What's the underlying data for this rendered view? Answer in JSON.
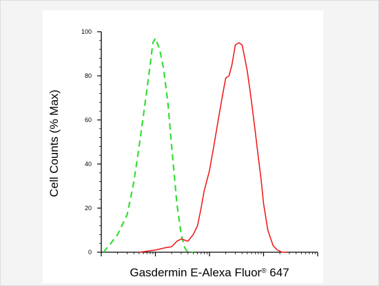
{
  "chart_data": {
    "type": "line",
    "xlabel": "Gasdermin E-Alexa Fluor",
    "xlabel_superscript": "®",
    "xlabel_suffix": " 647",
    "ylabel": "Cell Counts (% Max)",
    "x_scale": "log",
    "xlim": [
      1,
      10000
    ],
    "ylim": [
      0,
      100
    ],
    "yticks": [
      0,
      20,
      40,
      60,
      80,
      100
    ],
    "grid": false,
    "legend": "none",
    "series": [
      {
        "style": "dashed",
        "color": "#33dd33",
        "x": [
          1.1,
          1.5,
          2.0,
          3.0,
          4.0,
          5.0,
          6.0,
          7.0,
          8.0,
          9.0,
          10.0,
          12.0,
          14.0,
          17.0,
          20.0,
          25.0,
          30.0,
          35.0,
          40.0,
          50.0
        ],
        "y": [
          0,
          4,
          8,
          17,
          32,
          48,
          62,
          74,
          85,
          95,
          97,
          92,
          84,
          68,
          48,
          22,
          8,
          2,
          0,
          0
        ]
      },
      {
        "style": "solid",
        "color": "#ee1c1c",
        "x": [
          5.0,
          10.0,
          15.0,
          20.0,
          25.0,
          30.0,
          40.0,
          50.0,
          60.0,
          70.0,
          80.0,
          100.0,
          120.0,
          150.0,
          180.0,
          200.0,
          230.0,
          260.0,
          300.0,
          350.0,
          400.0,
          450.0,
          500.0,
          550.0,
          600.0,
          700.0,
          800.0,
          900.0,
          1000.0,
          1200.0,
          1500.0,
          1800.0,
          2200.0,
          2700.0
        ],
        "y": [
          0,
          1,
          2,
          2.5,
          5,
          6,
          5,
          8,
          12,
          20,
          28,
          37,
          48,
          62,
          73,
          79,
          80,
          85,
          94,
          95,
          94,
          88,
          82,
          75,
          68,
          55,
          43,
          33,
          22,
          10,
          3,
          1,
          0,
          0
        ]
      }
    ]
  }
}
